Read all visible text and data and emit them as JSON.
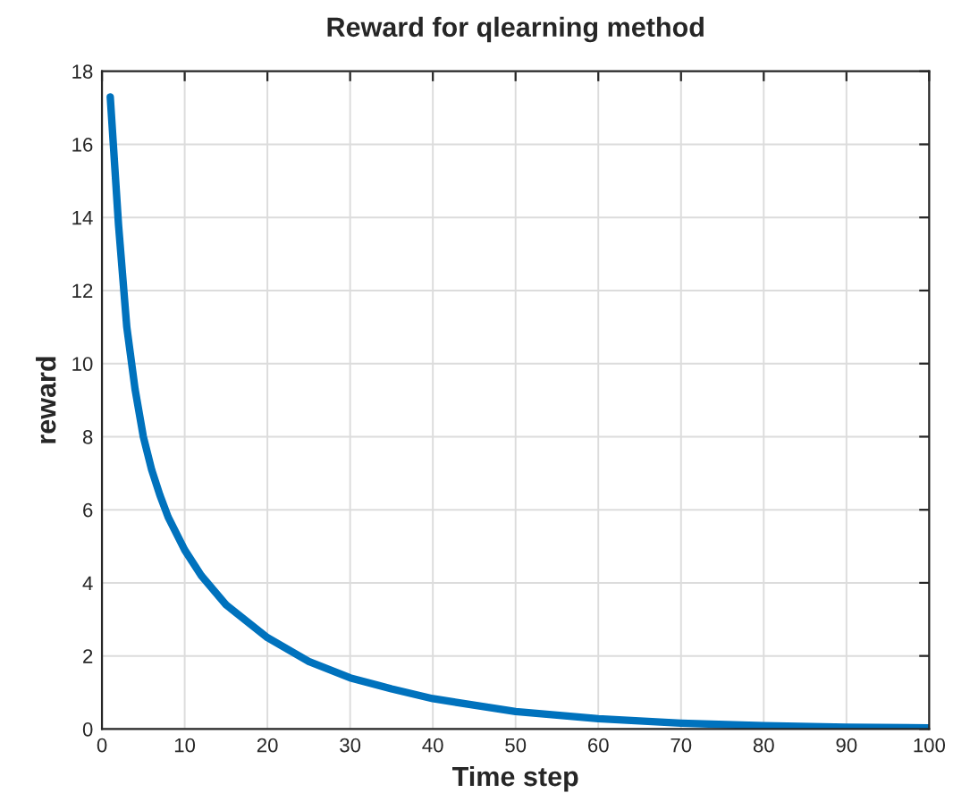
{
  "chart_data": {
    "type": "line",
    "title": "Reward for qlearning method",
    "xlabel": "Time step",
    "ylabel": "reward",
    "x": [
      1,
      2,
      3,
      4,
      5,
      6,
      7,
      8,
      10,
      12,
      15,
      20,
      25,
      30,
      35,
      40,
      50,
      60,
      70,
      80,
      90,
      100
    ],
    "series": [
      {
        "color": "#0072bd",
        "values": [
          17.3,
          13.8,
          11.0,
          9.3,
          8.0,
          7.1,
          6.4,
          5.8,
          4.9,
          4.2,
          3.4,
          2.5,
          1.85,
          1.4,
          1.1,
          0.83,
          0.48,
          0.28,
          0.16,
          0.09,
          0.05,
          0.03
        ]
      }
    ],
    "xlim": [
      0,
      100
    ],
    "xticks": [
      0,
      10,
      20,
      30,
      40,
      50,
      60,
      70,
      80,
      90,
      100
    ],
    "ylim": [
      0,
      18
    ],
    "yticks": [
      0,
      2,
      4,
      6,
      8,
      10,
      12,
      14,
      16,
      18
    ],
    "grid": true,
    "marker": "none",
    "line_style": "solid"
  }
}
